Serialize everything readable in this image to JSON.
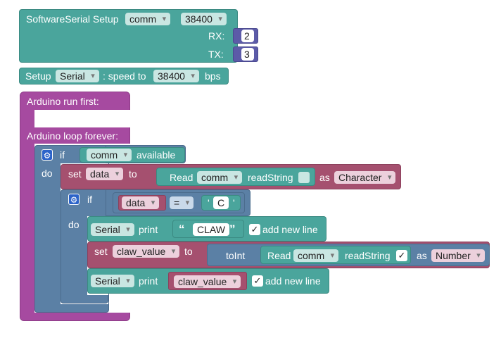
{
  "setup": {
    "title": "SoftwareSerial Setup",
    "port": "comm",
    "baud": "38400",
    "rx_label": "RX:",
    "rx_value": "2",
    "tx_label": "TX:",
    "tx_value": "3"
  },
  "serial_setup": {
    "label_pre": "Setup",
    "port": "Serial",
    "label_mid": ":  speed to",
    "baud": "38400",
    "label_post": "bps"
  },
  "run_first": {
    "label": "Arduino run first:"
  },
  "loop_forever": {
    "label": "Arduino loop forever:"
  },
  "if1": {
    "if_label": "if",
    "do_label": "do",
    "var": "comm",
    "available": "available"
  },
  "set_data": {
    "set_label": "set",
    "var": "data",
    "to_label": "to",
    "read_label": "Read",
    "port": "comm",
    "method": "readString",
    "as_label": "as",
    "type": "Character"
  },
  "if2": {
    "if_label": "if",
    "do_label": "do",
    "var": "data",
    "op": "=",
    "quote_open": "'",
    "char": "C",
    "quote_close": "'"
  },
  "print1": {
    "port": "Serial",
    "print_label": "print",
    "quote_open": "“",
    "text": "CLAW",
    "quote_close": "”",
    "check": "✓",
    "newline_label": "add new line"
  },
  "set_claw": {
    "set_label": "set",
    "var": "claw_value",
    "to_label": "to",
    "toint_label": "toInt",
    "read_label": "Read",
    "port": "comm",
    "method": "readString",
    "check": "✓",
    "as_label": "as",
    "type": "Number"
  },
  "print2": {
    "port": "Serial",
    "print_label": "print",
    "var": "claw_value",
    "check": "✓",
    "newline_label": "add new line"
  },
  "icons": {
    "gear": "⚙"
  },
  "colors": {
    "serial_blocks": "#4aa59c",
    "arduino_blocks": "#a64aa0",
    "logic_blocks": "#5b80a5",
    "variable_blocks": "#a5506f",
    "number_blocks": "#5c5ba8"
  }
}
